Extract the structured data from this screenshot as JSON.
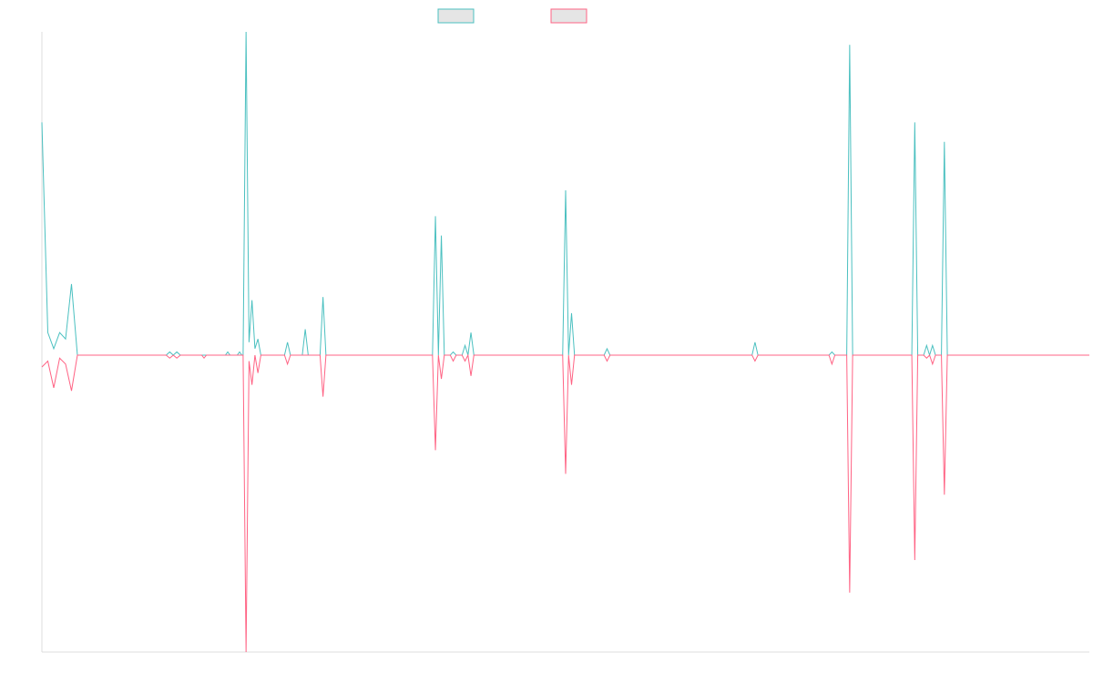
{
  "chart_data": {
    "type": "line",
    "title": "",
    "xlabel": "",
    "ylabel": "",
    "legend_placement": "top-center",
    "grid": false,
    "ylim": [
      -1,
      1
    ],
    "xlim": [
      0,
      177
    ],
    "series": [
      {
        "color": "#4bc0c0",
        "legend_fill": "#e5e5e5",
        "values": [
          [
            0,
            0.72
          ],
          [
            1,
            0.07
          ],
          [
            2,
            0.02
          ],
          [
            3,
            0.07
          ],
          [
            4,
            0.05
          ],
          [
            5,
            0.22
          ],
          [
            6,
            0.0
          ],
          [
            7,
            0.0
          ],
          [
            8,
            0.0
          ],
          [
            21,
            0.0
          ],
          [
            21.6,
            0.01
          ],
          [
            22.2,
            0.0
          ],
          [
            22.8,
            0.01
          ],
          [
            23.4,
            0.0
          ],
          [
            31,
            0.0
          ],
          [
            31.4,
            0.01
          ],
          [
            31.8,
            0.0
          ],
          [
            33,
            0.0
          ],
          [
            33.4,
            0.01
          ],
          [
            33.8,
            0.0
          ],
          [
            34,
            0.0
          ],
          [
            34.5,
            1.0
          ],
          [
            35,
            0.04
          ],
          [
            35.5,
            0.17
          ],
          [
            36,
            0.02
          ],
          [
            36.5,
            0.05
          ],
          [
            37,
            0.0
          ],
          [
            41,
            0.0
          ],
          [
            41.5,
            0.04
          ],
          [
            42,
            0.0
          ],
          [
            44,
            0.0
          ],
          [
            44.5,
            0.08
          ],
          [
            45,
            0.0
          ],
          [
            47,
            0.0
          ],
          [
            47.5,
            0.18
          ],
          [
            48,
            0.0
          ],
          [
            66,
            0.0
          ],
          [
            66.5,
            0.43
          ],
          [
            67,
            0.0
          ],
          [
            67.5,
            0.37
          ],
          [
            68,
            0.0
          ],
          [
            69,
            0.0
          ],
          [
            69.5,
            0.01
          ],
          [
            70,
            0.0
          ],
          [
            71,
            0.0
          ],
          [
            71.5,
            0.03
          ],
          [
            72,
            0.0
          ],
          [
            72.5,
            0.07
          ],
          [
            73,
            0.0
          ],
          [
            88,
            0.0
          ],
          [
            88.5,
            0.51
          ],
          [
            89,
            0.0
          ],
          [
            89.5,
            0.13
          ],
          [
            90,
            0.0
          ],
          [
            95,
            0.0
          ],
          [
            95.5,
            0.02
          ],
          [
            96,
            0.0
          ],
          [
            120,
            0.0
          ],
          [
            120.5,
            0.04
          ],
          [
            121,
            0.0
          ],
          [
            133,
            0.0
          ],
          [
            133.5,
            0.01
          ],
          [
            134,
            0.0
          ],
          [
            136,
            0.0
          ],
          [
            136.5,
            0.96
          ],
          [
            137,
            0.0
          ],
          [
            147,
            0.0
          ],
          [
            147.5,
            0.72
          ],
          [
            148,
            0.0
          ],
          [
            149,
            0.0
          ],
          [
            149.5,
            0.03
          ],
          [
            150,
            0.0
          ],
          [
            150.5,
            0.03
          ],
          [
            151,
            0.0
          ],
          [
            152,
            0.0
          ],
          [
            152.5,
            0.66
          ],
          [
            153,
            0.0
          ],
          [
            177,
            0.0
          ]
        ]
      },
      {
        "color": "#ff6384",
        "legend_fill": "#e5e5e5",
        "values": [
          [
            0,
            -0.04
          ],
          [
            1,
            -0.02
          ],
          [
            2,
            -0.11
          ],
          [
            3,
            -0.01
          ],
          [
            4,
            -0.03
          ],
          [
            5,
            -0.12
          ],
          [
            6,
            0.0
          ],
          [
            7,
            0.0
          ],
          [
            8,
            0.0
          ],
          [
            21,
            0.0
          ],
          [
            21.6,
            -0.01
          ],
          [
            22.2,
            0.0
          ],
          [
            22.8,
            -0.01
          ],
          [
            23.4,
            0.0
          ],
          [
            27,
            0.0
          ],
          [
            27.4,
            -0.01
          ],
          [
            27.8,
            0.0
          ],
          [
            34,
            0.0
          ],
          [
            34.5,
            -1.0
          ],
          [
            35,
            -0.02
          ],
          [
            35.5,
            -0.1
          ],
          [
            36,
            0.0
          ],
          [
            36.5,
            -0.06
          ],
          [
            37,
            0.0
          ],
          [
            41,
            0.0
          ],
          [
            41.5,
            -0.03
          ],
          [
            42,
            0.0
          ],
          [
            47,
            0.0
          ],
          [
            47.5,
            -0.14
          ],
          [
            48,
            0.0
          ],
          [
            66,
            0.0
          ],
          [
            66.5,
            -0.32
          ],
          [
            67,
            0.0
          ],
          [
            67.5,
            -0.08
          ],
          [
            68,
            0.0
          ],
          [
            69,
            0.0
          ],
          [
            69.5,
            -0.02
          ],
          [
            70,
            0.0
          ],
          [
            71,
            0.0
          ],
          [
            71.5,
            -0.02
          ],
          [
            72,
            0.0
          ],
          [
            72.5,
            -0.07
          ],
          [
            73,
            0.0
          ],
          [
            88,
            0.0
          ],
          [
            88.5,
            -0.4
          ],
          [
            89,
            0.0
          ],
          [
            89.5,
            -0.1
          ],
          [
            90,
            0.0
          ],
          [
            95,
            0.0
          ],
          [
            95.5,
            -0.02
          ],
          [
            96,
            0.0
          ],
          [
            120,
            0.0
          ],
          [
            120.5,
            -0.02
          ],
          [
            121,
            0.0
          ],
          [
            133,
            0.0
          ],
          [
            133.5,
            -0.03
          ],
          [
            134,
            0.0
          ],
          [
            136,
            0.0
          ],
          [
            136.5,
            -0.8
          ],
          [
            137,
            0.0
          ],
          [
            147,
            0.0
          ],
          [
            147.5,
            -0.69
          ],
          [
            148,
            0.0
          ],
          [
            149,
            0.0
          ],
          [
            149.5,
            -0.01
          ],
          [
            150,
            0.0
          ],
          [
            150.5,
            -0.03
          ],
          [
            151,
            0.0
          ],
          [
            152,
            0.0
          ],
          [
            152.5,
            -0.47
          ],
          [
            153,
            0.0
          ],
          [
            177,
            0.0
          ]
        ]
      }
    ]
  }
}
